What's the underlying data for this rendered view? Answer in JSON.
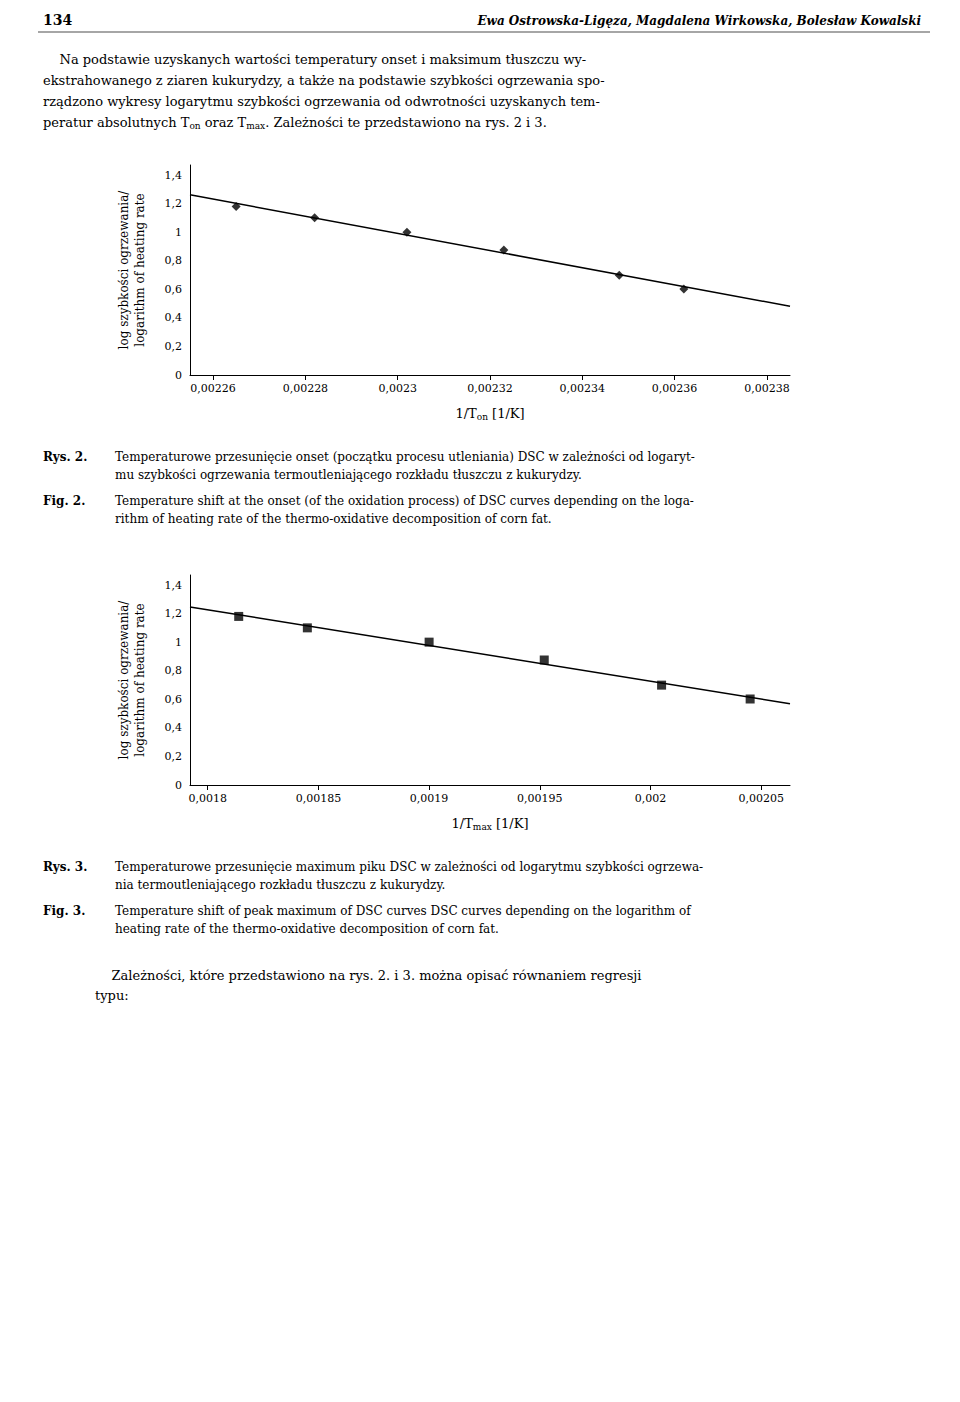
{
  "page_header": {
    "left": "134",
    "right": "Ewa Ostrowska-Ligęza, Magdalena Wirkowska, Bolesław Kowalski"
  },
  "intro": [
    "    Na podstawie uzyskanych wartości temperatury onset i maksimum tłuszczu wy-",
    "ekstrahowanego z ziaren kukurydzy, a także na podstawie szybkości ogrzewania spo-",
    "rządzono wykresy logarytmu szybkości ogrzewania od odwrotności uzyskanych tem-",
    [
      "peratur absolutnych T",
      {
        "sub": "on"
      },
      " oraz T",
      {
        "sub": "max"
      },
      ". Zależności te przedstawiono na rys. 2 i 3."
    ]
  ],
  "footer": "    Zależności, które przedstawiono na rys. 2. i 3. można opisać równaniem regresji\ntypu:",
  "chart_data": [
    {
      "type": "scatter",
      "xlabel": "1/T",
      "xlabel_sub": "on",
      "xlabel_unit": " [1/K]",
      "ylabel": "log szybkości ogrzewania/\nlogarithm of heating rate",
      "xlim": [
        0.002255,
        0.002385
      ],
      "ylim": [
        0,
        1.47
      ],
      "xticks": [
        {
          "value": 0.00226,
          "label": "0,00226"
        },
        {
          "value": 0.00228,
          "label": "0,00228"
        },
        {
          "value": 0.0023,
          "label": "0,0023"
        },
        {
          "value": 0.00232,
          "label": "0,00232"
        },
        {
          "value": 0.00234,
          "label": "0,00234"
        },
        {
          "value": 0.00236,
          "label": "0,00236"
        },
        {
          "value": 0.00238,
          "label": "0,00238"
        }
      ],
      "yticks": [
        0,
        {
          "value": 0.2,
          "label": "0,2"
        },
        {
          "value": 0.4,
          "label": "0,4"
        },
        {
          "value": 0.6,
          "label": "0,6"
        },
        {
          "value": 0.8,
          "label": "0,8"
        },
        1,
        {
          "value": 1.2,
          "label": "1,2"
        },
        {
          "value": 1.4,
          "label": "1,4"
        }
      ],
      "grid": false,
      "series": [
        {
          "type": "line",
          "line_style": "solid",
          "color": "#000000",
          "x": [
            0.002255,
            0.002385
          ],
          "values": [
            1.2614,
            0.4813
          ]
        },
        {
          "type": "scatter",
          "marker": "diamond",
          "color": "#000000",
          "x": [
            0.002265,
            0.002282,
            0.002302,
            0.002323,
            0.002348,
            0.002362
          ],
          "values": [
            1.18,
            1.1,
            1.0,
            0.875,
            0.699,
            0.602
          ]
        }
      ],
      "annotations": [
        {
          "label": "Rys. 2.",
          "text": "Temperaturowe przesunięcie onset (początku procesu utleniania) DSC w zależności od logaryt-\nmu szybkości ogrzewania termoutleniającego rozkładu tłuszczu z kukurydzy."
        },
        {
          "label": "Fig. 2.",
          "text": "Temperature shift at the onset (of the oxidation process) of DSC curves depending on the loga-\nrithm of heating rate of the thermo-oxidative decomposition of corn fat."
        }
      ]
    },
    {
      "type": "scatter",
      "xlabel": "1/T",
      "xlabel_sub": "max",
      "xlabel_unit": " [1/K]",
      "ylabel": "log szybkości ogrzewania/\nlogarithm of heating rate",
      "xlim": [
        0.001792,
        0.002063
      ],
      "ylim": [
        0,
        1.47
      ],
      "xticks": [
        {
          "value": 0.0018,
          "label": "0,0018"
        },
        {
          "value": 0.00185,
          "label": "0,00185"
        },
        {
          "value": 0.0019,
          "label": "0,0019"
        },
        {
          "value": 0.00195,
          "label": "0,00195"
        },
        {
          "value": 0.002,
          "label": "0,002"
        },
        {
          "value": 0.00205,
          "label": "0,00205"
        }
      ],
      "yticks": [
        0,
        {
          "value": 0.2,
          "label": "0,2"
        },
        {
          "value": 0.4,
          "label": "0,4"
        },
        {
          "value": 0.6,
          "label": "0,6"
        },
        {
          "value": 0.8,
          "label": "0,8"
        },
        1,
        {
          "value": 1.2,
          "label": "1,2"
        },
        {
          "value": 1.4,
          "label": "1,4"
        }
      ],
      "grid": false,
      "series": [
        {
          "type": "line",
          "line_style": "solid",
          "color": "#000000",
          "x": [
            0.001792,
            0.002063
          ],
          "values": [
            1.2466,
            0.5687
          ]
        },
        {
          "type": "scatter",
          "marker": "square",
          "color": "#000000",
          "x": [
            0.001814,
            0.001845,
            0.0019,
            0.001952,
            0.002005,
            0.002045
          ],
          "values": [
            1.18,
            1.1,
            1.0,
            0.875,
            0.699,
            0.602
          ]
        }
      ],
      "annotations": [
        {
          "label": "Rys. 3.",
          "text": "Temperaturowe przesunięcie maximum piku DSC w zależności od logarytmu szybkości ogrzewa-\nnia termoutleniającego rozkładu tłuszczu z kukurydzy."
        },
        {
          "label": "Fig. 3.",
          "text": "Temperature shift of peak maximum of DSC curves DSC curves depending on the logarithm of\nheating rate of the thermo-oxidative decomposition of corn fat."
        }
      ]
    }
  ]
}
